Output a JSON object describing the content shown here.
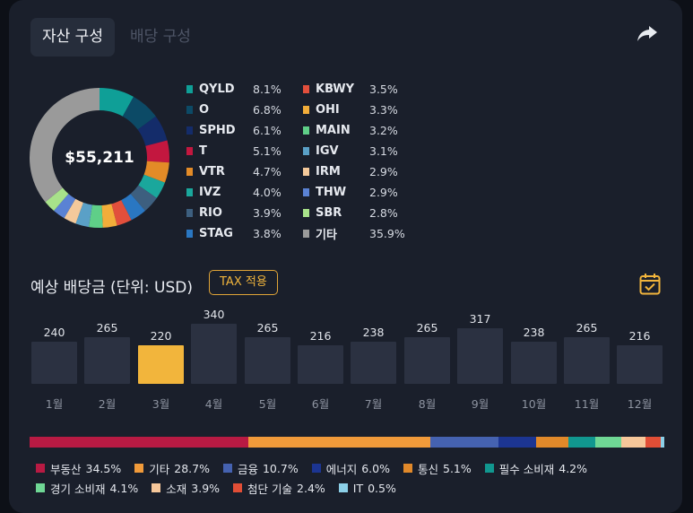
{
  "tabs": [
    {
      "label": "자산 구성",
      "active": true
    },
    {
      "label": "배당 구성",
      "active": false
    }
  ],
  "portfolio": {
    "total": "$55,211",
    "holdings": [
      {
        "ticker": "QYLD",
        "pct": "8.1%",
        "value": 8.1,
        "color": "#0f9f97"
      },
      {
        "ticker": "O",
        "pct": "6.8%",
        "value": 6.8,
        "color": "#0c4a66"
      },
      {
        "ticker": "SPHD",
        "pct": "6.1%",
        "value": 6.1,
        "color": "#142c6a"
      },
      {
        "ticker": "T",
        "pct": "5.1%",
        "value": 5.1,
        "color": "#c3173f"
      },
      {
        "ticker": "VTR",
        "pct": "4.7%",
        "value": 4.7,
        "color": "#e38b27"
      },
      {
        "ticker": "IVZ",
        "pct": "4.0%",
        "value": 4.0,
        "color": "#1aa79c"
      },
      {
        "ticker": "RIO",
        "pct": "3.9%",
        "value": 3.9,
        "color": "#3d5f7f"
      },
      {
        "ticker": "STAG",
        "pct": "3.8%",
        "value": 3.8,
        "color": "#2a77c2"
      },
      {
        "ticker": "KBWY",
        "pct": "3.5%",
        "value": 3.5,
        "color": "#e24f3c"
      },
      {
        "ticker": "OHI",
        "pct": "3.3%",
        "value": 3.3,
        "color": "#f2ad3a"
      },
      {
        "ticker": "MAIN",
        "pct": "3.2%",
        "value": 3.2,
        "color": "#5fcf88"
      },
      {
        "ticker": "IGV",
        "pct": "3.1%",
        "value": 3.1,
        "color": "#5aa0c7"
      },
      {
        "ticker": "IRM",
        "pct": "2.9%",
        "value": 2.9,
        "color": "#f4c99b"
      },
      {
        "ticker": "THW",
        "pct": "2.9%",
        "value": 2.9,
        "color": "#5a82d4"
      },
      {
        "ticker": "SBR",
        "pct": "2.8%",
        "value": 2.8,
        "color": "#a8e28a"
      },
      {
        "ticker": "기타",
        "pct": "35.9%",
        "value": 35.9,
        "color": "#9a9a9a"
      }
    ]
  },
  "dividends": {
    "title": "예상 배당금 (단위: USD)",
    "tax_label": "TAX 적용",
    "selected_month": 2,
    "months": [
      {
        "label": "1월",
        "value": 240
      },
      {
        "label": "2월",
        "value": 265
      },
      {
        "label": "3월",
        "value": 220
      },
      {
        "label": "4월",
        "value": 340
      },
      {
        "label": "5월",
        "value": 265
      },
      {
        "label": "6월",
        "value": 216
      },
      {
        "label": "7월",
        "value": 238
      },
      {
        "label": "8월",
        "value": 265
      },
      {
        "label": "9월",
        "value": 317
      },
      {
        "label": "10월",
        "value": 238
      },
      {
        "label": "11월",
        "value": 265
      },
      {
        "label": "12월",
        "value": 216
      }
    ]
  },
  "sectors": [
    {
      "name": "부동산",
      "pct": "34.5%",
      "value": 34.5,
      "color": "#b81a43"
    },
    {
      "name": "기타",
      "pct": "28.7%",
      "value": 28.7,
      "color": "#f09a3a"
    },
    {
      "name": "금융",
      "pct": "10.7%",
      "value": 10.7,
      "color": "#4562b0"
    },
    {
      "name": "에너지",
      "pct": "6.0%",
      "value": 6.0,
      "color": "#1c3592"
    },
    {
      "name": "통신",
      "pct": "5.1%",
      "value": 5.1,
      "color": "#e1892a"
    },
    {
      "name": "필수 소비재",
      "pct": "4.2%",
      "value": 4.2,
      "color": "#11978f"
    },
    {
      "name": "경기 소비재",
      "pct": "4.1%",
      "value": 4.1,
      "color": "#6fd795"
    },
    {
      "name": "소재",
      "pct": "3.9%",
      "value": 3.9,
      "color": "#f6c79a"
    },
    {
      "name": "첨단 기술",
      "pct": "2.4%",
      "value": 2.4,
      "color": "#e14e36"
    },
    {
      "name": "IT",
      "pct": "0.5%",
      "value": 0.5,
      "color": "#8cd0e8"
    }
  ],
  "icons": {
    "share": "share-arrow-icon",
    "calendar": "calendar-check-icon"
  },
  "colors": {
    "accent": "#f2b53c",
    "card": "#1a1f2b"
  }
}
